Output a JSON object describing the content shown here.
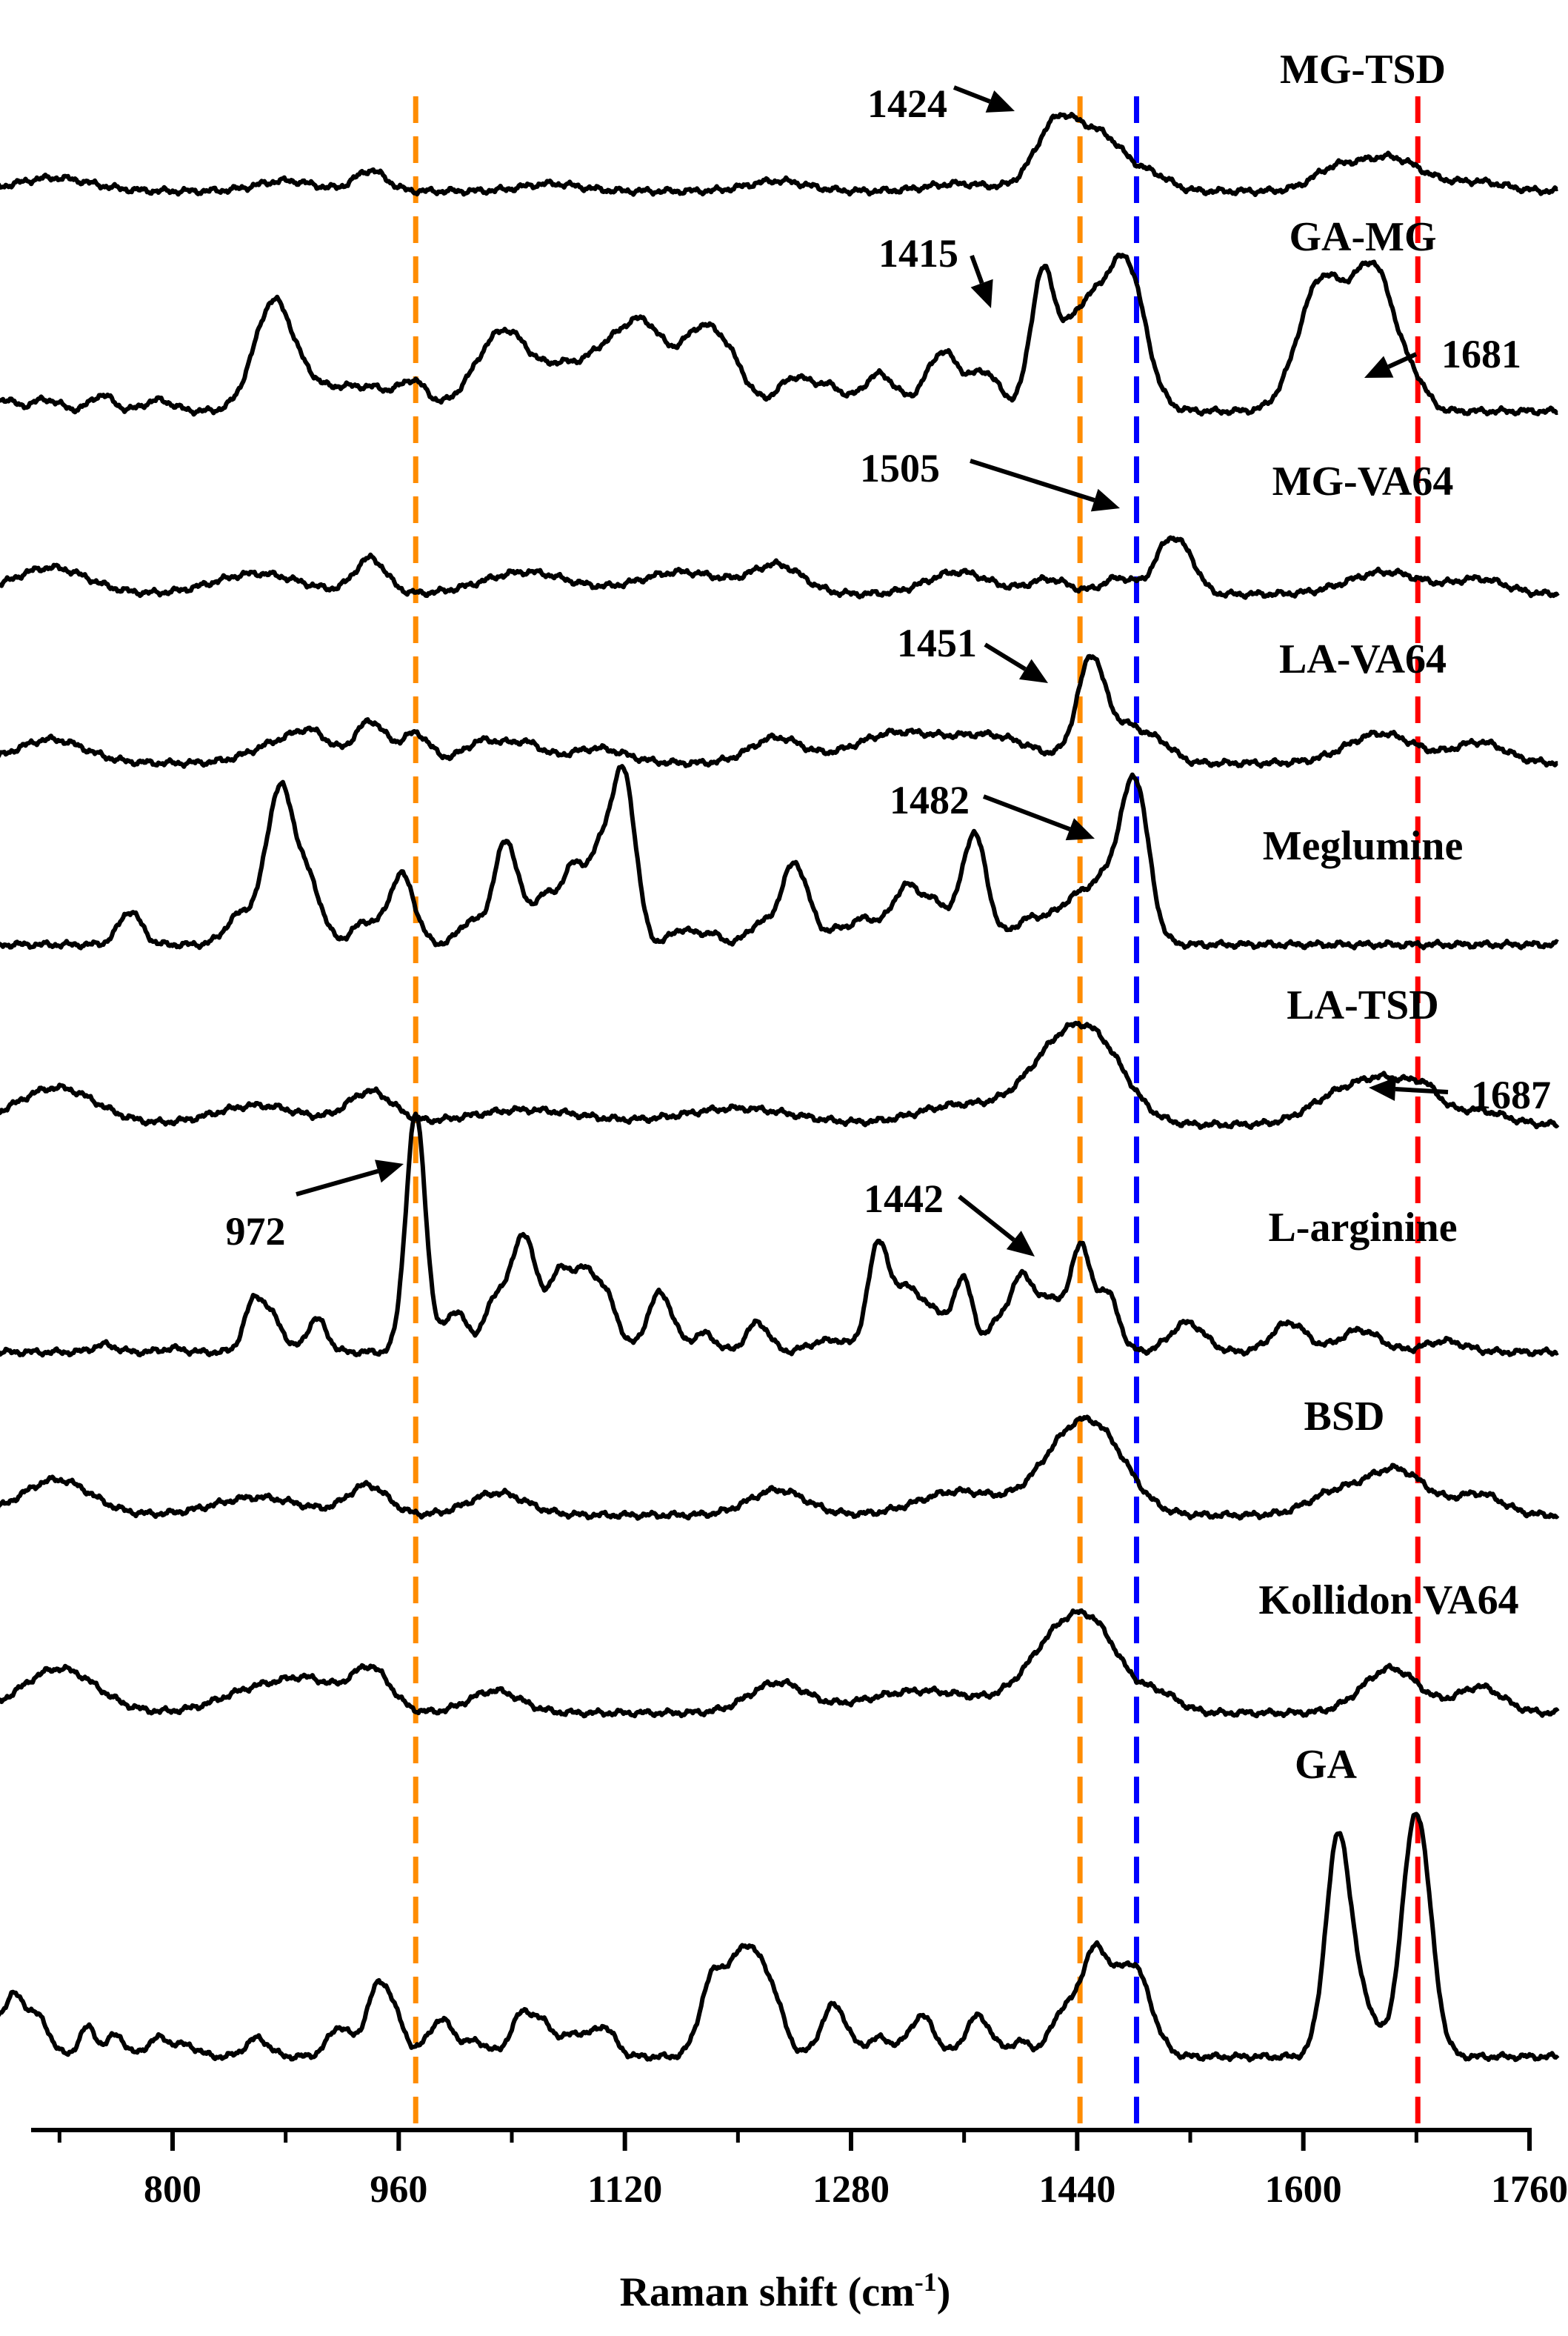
{
  "chart_data": {
    "type": "line",
    "title": "",
    "xlabel": "Raman shift (cm",
    "xlabel_sup": "-1",
    "xlabel_close": ")",
    "ylabel": "",
    "xlim": [
      640,
      1785
    ],
    "xticks": [
      800,
      960,
      1120,
      1280,
      1440,
      1600,
      1760
    ],
    "grid": false,
    "reference_lines": [
      {
        "x": 972,
        "color": "#FF8C00"
      },
      {
        "x": 1442,
        "color": "#FF8C00"
      },
      {
        "x": 1482,
        "color": "#0000FF"
      },
      {
        "x": 1681,
        "color": "#FF0000"
      }
    ],
    "series": [
      {
        "name": "MG-TSD",
        "baseline": 258,
        "peaks": [
          [
            716,
            18,
            26
          ],
          [
            880,
            14,
            20
          ],
          [
            940,
            28,
            11
          ],
          [
            1068,
            10,
            20
          ],
          [
            1228,
            14,
            20
          ],
          [
            1356,
            10,
            22
          ],
          [
            1424,
            58,
            14
          ],
          [
            1440,
            50,
            22
          ],
          [
            1462,
            42,
            16
          ],
          [
            1495,
            18,
            12
          ],
          [
            1620,
            22,
            15
          ],
          [
            1660,
            46,
            24
          ],
          [
            1725,
            12,
            18
          ]
        ]
      },
      {
        "name": "GA-MG",
        "baseline": 555,
        "peaks": [
          [
            680,
            16,
            8
          ],
          [
            710,
            16,
            10
          ],
          [
            750,
            22,
            8
          ],
          [
            790,
            15,
            10
          ],
          [
            872,
            150,
            14
          ],
          [
            900,
            25,
            10
          ],
          [
            920,
            25,
            10
          ],
          [
            942,
            30,
            12
          ],
          [
            970,
            40,
            10
          ],
          [
            1035,
            110,
            20
          ],
          [
            1075,
            40,
            12
          ],
          [
            1100,
            55,
            14
          ],
          [
            1132,
            120,
            18
          ],
          [
            1170,
            70,
            12
          ],
          [
            1190,
            80,
            14
          ],
          [
            1240,
            45,
            12
          ],
          [
            1265,
            30,
            10
          ],
          [
            1300,
            50,
            12
          ],
          [
            1345,
            80,
            12
          ],
          [
            1375,
            50,
            10
          ],
          [
            1415,
            150,
            8
          ],
          [
            1450,
            150,
            22
          ],
          [
            1477,
            130,
            12
          ],
          [
            1612,
            170,
            16
          ],
          [
            1650,
            190,
            16
          ],
          [
            1681,
            20,
            8
          ]
        ]
      },
      {
        "name": "MG-VA64",
        "baseline": 802,
        "peaks": [
          [
            714,
            36,
            26
          ],
          [
            860,
            28,
            30
          ],
          [
            940,
            48,
            11
          ],
          [
            1050,
            30,
            30
          ],
          [
            1160,
            30,
            30
          ],
          [
            1228,
            38,
            18
          ],
          [
            1356,
            30,
            22
          ],
          [
            1420,
            20,
            14
          ],
          [
            1470,
            22,
            12
          ],
          [
            1505,
            70,
            10
          ],
          [
            1520,
            30,
            8
          ],
          [
            1658,
            30,
            26
          ],
          [
            1725,
            20,
            18
          ]
        ]
      },
      {
        "name": "LA-VA64",
        "baseline": 1030,
        "peaks": [
          [
            714,
            32,
            24
          ],
          [
            880,
            30,
            22
          ],
          [
            900,
            24,
            12
          ],
          [
            940,
            56,
            11
          ],
          [
            972,
            40,
            10
          ],
          [
            1020,
            30,
            14
          ],
          [
            1050,
            25,
            12
          ],
          [
            1100,
            20,
            20
          ],
          [
            1227,
            34,
            18
          ],
          [
            1312,
            40,
            30
          ],
          [
            1380,
            35,
            28
          ],
          [
            1445,
            40,
            10
          ],
          [
            1451,
            100,
            9
          ],
          [
            1475,
            50,
            14
          ],
          [
            1500,
            20,
            10
          ],
          [
            1655,
            40,
            24
          ],
          [
            1725,
            28,
            18
          ]
        ]
      },
      {
        "name": "Meglumine",
        "baseline": 1275,
        "peaks": [
          [
            770,
            45,
            8
          ],
          [
            848,
            40,
            10
          ],
          [
            876,
            210,
            10
          ],
          [
            897,
            75,
            9
          ],
          [
            936,
            30,
            9
          ],
          [
            962,
            95,
            9
          ],
          [
            1010,
            30,
            8
          ],
          [
            1036,
            140,
            9
          ],
          [
            1062,
            60,
            8
          ],
          [
            1083,
            100,
            9
          ],
          [
            1104,
            120,
            9
          ],
          [
            1120,
            210,
            8
          ],
          [
            1160,
            20,
            8
          ],
          [
            1180,
            15,
            8
          ],
          [
            1214,
            25,
            8
          ],
          [
            1240,
            110,
            10
          ],
          [
            1272,
            20,
            9
          ],
          [
            1290,
            30,
            8
          ],
          [
            1320,
            80,
            12
          ],
          [
            1342,
            40,
            8
          ],
          [
            1367,
            150,
            9
          ],
          [
            1405,
            30,
            12
          ],
          [
            1440,
            60,
            16
          ],
          [
            1470,
            90,
            14
          ],
          [
            1482,
            160,
            9
          ]
        ]
      },
      {
        "name": "LA-TSD",
        "baseline": 1518,
        "peaks": [
          [
            718,
            50,
            28
          ],
          [
            860,
            26,
            30
          ],
          [
            940,
            44,
            16
          ],
          [
            1050,
            20,
            40
          ],
          [
            1200,
            22,
            40
          ],
          [
            1356,
            26,
            30
          ],
          [
            1432,
            110,
            26
          ],
          [
            1460,
            50,
            20
          ],
          [
            1620,
            28,
            20
          ],
          [
            1660,
            60,
            24
          ],
          [
            1687,
            22,
            10
          ],
          [
            1725,
            18,
            18
          ]
        ]
      },
      {
        "name": "L-arginine",
        "baseline": 1825,
        "peaks": [
          [
            752,
            10,
            8
          ],
          [
            800,
            5,
            8
          ],
          [
            858,
            70,
            7
          ],
          [
            872,
            40,
            7
          ],
          [
            902,
            45,
            7
          ],
          [
            972,
            320,
            7
          ],
          [
            1000,
            55,
            8
          ],
          [
            1030,
            75,
            9
          ],
          [
            1049,
            150,
            8
          ],
          [
            1073,
            100,
            9
          ],
          [
            1092,
            95,
            9
          ],
          [
            1108,
            60,
            8
          ],
          [
            1145,
            80,
            9
          ],
          [
            1176,
            25,
            8
          ],
          [
            1214,
            40,
            8
          ],
          [
            1254,
            10,
            8
          ],
          [
            1270,
            15,
            8
          ],
          [
            1300,
            150,
            8
          ],
          [
            1320,
            80,
            7
          ],
          [
            1337,
            60,
            8
          ],
          [
            1359,
            100,
            7
          ],
          [
            1385,
            40,
            8
          ],
          [
            1402,
            100,
            8
          ],
          [
            1422,
            70,
            8
          ],
          [
            1442,
            140,
            7
          ],
          [
            1461,
            80,
            8
          ],
          [
            1518,
            40,
            12
          ],
          [
            1590,
            40,
            12
          ],
          [
            1640,
            30,
            14
          ],
          [
            1700,
            15,
            14
          ]
        ]
      },
      {
        "name": "BSD",
        "baseline": 2045,
        "peaks": [
          [
            718,
            48,
            24
          ],
          [
            860,
            24,
            30
          ],
          [
            938,
            40,
            14
          ],
          [
            1030,
            30,
            20
          ],
          [
            1228,
            34,
            20
          ],
          [
            1356,
            32,
            28
          ],
          [
            1437,
            100,
            24
          ],
          [
            1462,
            50,
            20
          ],
          [
            1620,
            26,
            18
          ],
          [
            1665,
            62,
            22
          ],
          [
            1725,
            28,
            16
          ]
        ]
      },
      {
        "name": "Kollidon VA64",
        "baseline": 2312,
        "peaks": [
          [
            720,
            60,
            26
          ],
          [
            864,
            35,
            28
          ],
          [
            900,
            30,
            18
          ],
          [
            940,
            60,
            14
          ],
          [
            1028,
            30,
            18
          ],
          [
            1228,
            40,
            20
          ],
          [
            1330,
            30,
            40
          ],
          [
            1430,
            105,
            24
          ],
          [
            1457,
            60,
            18
          ],
          [
            1498,
            25,
            14
          ],
          [
            1662,
            60,
            20
          ],
          [
            1725,
            35,
            16
          ]
        ]
      },
      {
        "name": "GA",
        "baseline": 2776,
        "peaks": [
          [
            655,
            70,
            6
          ],
          [
            670,
            60,
            5
          ],
          [
            687,
            80,
            8
          ],
          [
            705,
            50,
            8
          ],
          [
            740,
            40,
            6
          ],
          [
            760,
            30,
            6
          ],
          [
            790,
            25,
            8
          ],
          [
            810,
            15,
            8
          ],
          [
            860,
            25,
            8
          ],
          [
            918,
            40,
            8
          ],
          [
            944,
            80,
            8
          ],
          [
            956,
            50,
            8
          ],
          [
            990,
            50,
            9
          ],
          [
            1015,
            20,
            8
          ],
          [
            1047,
            55,
            8
          ],
          [
            1063,
            40,
            8
          ],
          [
            1085,
            30,
            8
          ],
          [
            1105,
            40,
            8
          ],
          [
            1182,
            100,
            9
          ],
          [
            1205,
            140,
            11
          ],
          [
            1224,
            70,
            9
          ],
          [
            1268,
            70,
            9
          ],
          [
            1300,
            25,
            9
          ],
          [
            1330,
            55,
            9
          ],
          [
            1370,
            55,
            9
          ],
          [
            1400,
            20,
            8
          ],
          [
            1428,
            50,
            8
          ],
          [
            1452,
            140,
            11
          ],
          [
            1480,
            120,
            12
          ],
          [
            1625,
            300,
            9
          ],
          [
            1680,
            330,
            10
          ],
          [
            1645,
            55,
            8
          ]
        ]
      }
    ],
    "annotations": [
      {
        "text": "1424",
        "series": "MG-TSD"
      },
      {
        "text": "1415",
        "series": "GA-MG"
      },
      {
        "text": "1681",
        "series": "GA-MG"
      },
      {
        "text": "1505",
        "series": "MG-VA64"
      },
      {
        "text": "1451",
        "series": "LA-VA64"
      },
      {
        "text": "1482",
        "series": "Meglumine"
      },
      {
        "text": "1687",
        "series": "LA-TSD"
      },
      {
        "text": "972",
        "series": "L-arginine"
      },
      {
        "text": "1442",
        "series": "L-arginine"
      }
    ]
  }
}
